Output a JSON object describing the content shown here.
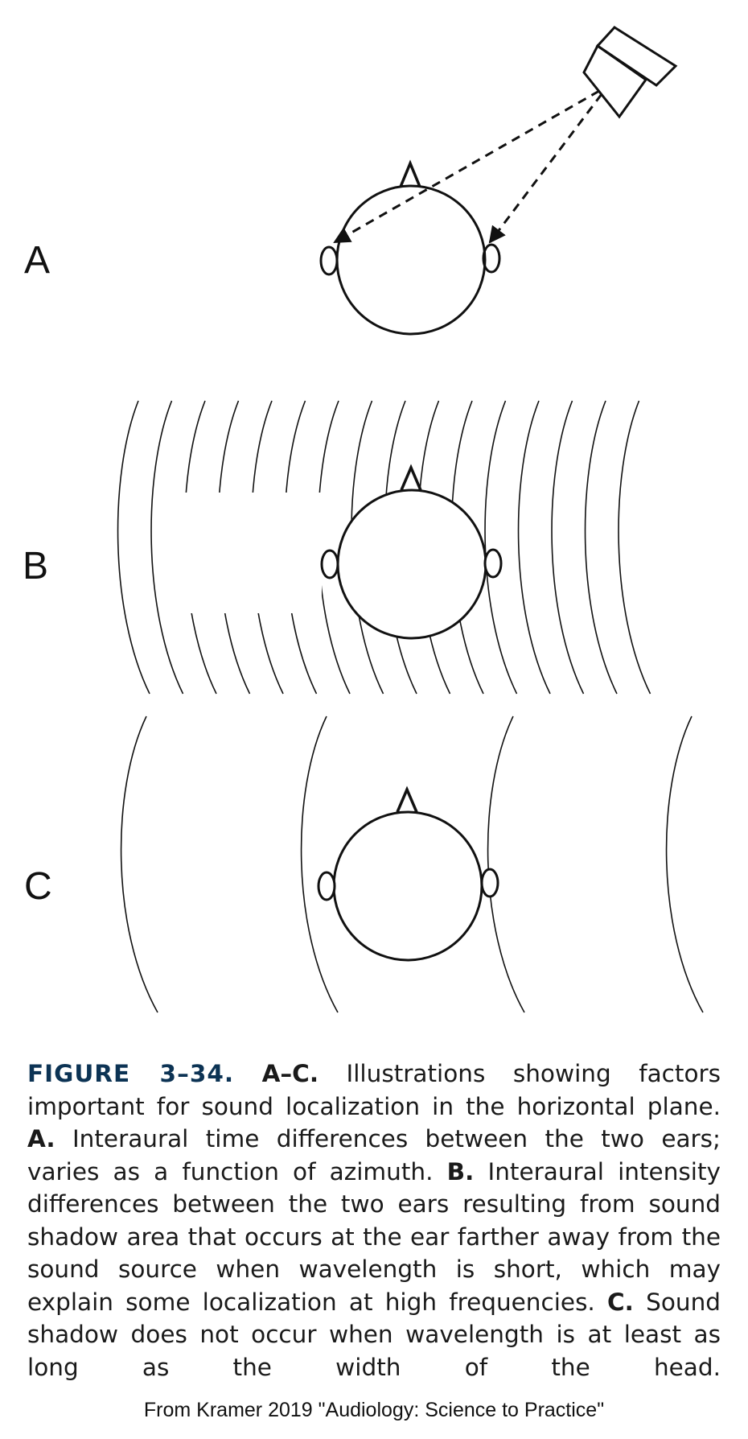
{
  "panels": {
    "a": {
      "label": "A"
    },
    "b": {
      "label": "B"
    },
    "c": {
      "label": "C"
    }
  },
  "caption": {
    "figure_number": "FIGURE 3–34.",
    "range_label": "A–C.",
    "intro": "Illustrations showing factors important for sound localization in the horizontal plane.",
    "a_label": "A.",
    "a_text": "Interaural time differences between the two ears; varies as a function of azimuth.",
    "b_label": "B.",
    "b_text": "Interaural intensity differences between the two ears resulting from sound shadow area that occurs at the ear farther away from the sound source when wavelength is short, which may explain some localization at high frequencies.",
    "c_label": "C.",
    "c_text": "Sound shadow does not occur when wavelength is at least as long as the width of the head."
  },
  "credit": "From Kramer 2019 \"Audiology: Science to Practice\""
}
